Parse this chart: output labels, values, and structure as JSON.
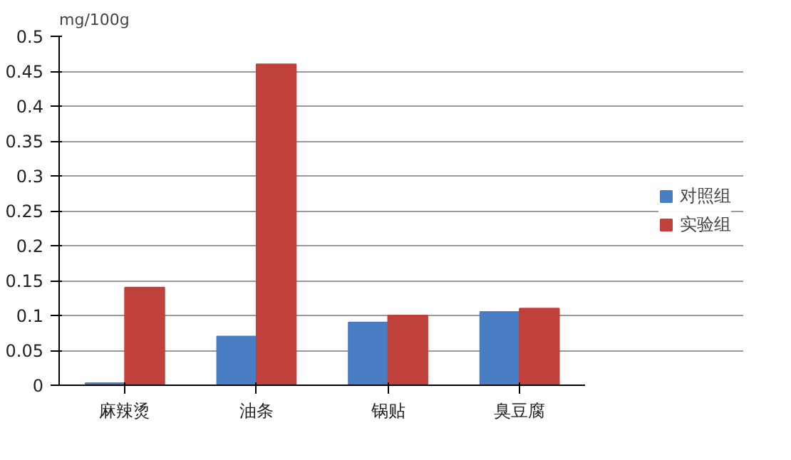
{
  "chart_data": {
    "type": "bar",
    "ylabel": "mg/100g",
    "categories": [
      "麻辣烫",
      "油条",
      "锅贴",
      "臭豆腐"
    ],
    "series": [
      {
        "name": "对照组",
        "color": "#4a7ec4",
        "values": [
          0.003,
          0.07,
          0.09,
          0.105
        ]
      },
      {
        "name": "实验组",
        "color": "#c0403c",
        "values": [
          0.14,
          0.46,
          0.1,
          0.11
        ]
      }
    ],
    "ylim": [
      0,
      0.5
    ],
    "yticks": [
      0,
      0.05,
      0.1,
      0.15,
      0.2,
      0.25,
      0.3,
      0.35,
      0.4,
      0.45,
      0.5
    ],
    "grid": "y",
    "legend": "right"
  }
}
